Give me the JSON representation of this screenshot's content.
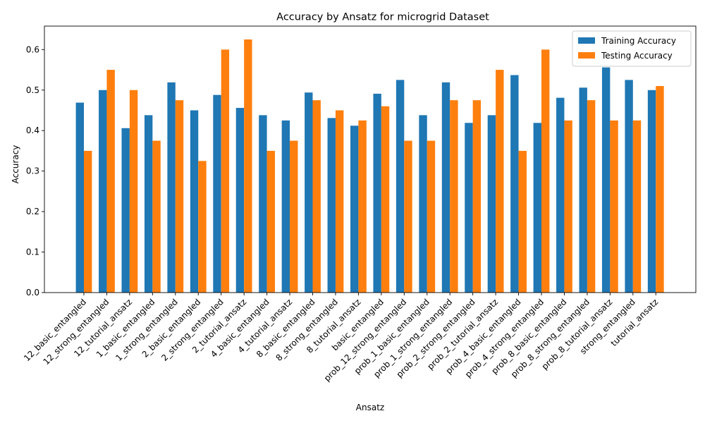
{
  "chart_data": {
    "type": "bar",
    "title": "Accuracy by Ansatz for microgrid Dataset",
    "xlabel": "Ansatz",
    "ylabel": "Accuracy",
    "ylim": [
      0,
      0.658
    ],
    "yticks": [
      0.0,
      0.1,
      0.2,
      0.3,
      0.4,
      0.5,
      0.6
    ],
    "ytick_labels": [
      "0.0",
      "0.1",
      "0.2",
      "0.3",
      "0.4",
      "0.5",
      "0.6"
    ],
    "grid": false,
    "legend_position": "top-right",
    "categories": [
      "12_basic_entangled",
      "12_strong_entangled",
      "12_tutorial_ansatz",
      "1_basic_entangled",
      "1_strong_entangled",
      "2_basic_entangled",
      "2_strong_entangled",
      "2_tutorial_ansatz",
      "4_basic_entangled",
      "4_tutorial_ansatz",
      "8_basic_entangled",
      "8_strong_entangled",
      "8_tutorial_ansatz",
      "basic_entangled",
      "prob_12_strong_entangled",
      "prob_1_basic_entangled",
      "prob_1_strong_entangled",
      "prob_2_strong_entangled",
      "prob_2_tutorial_ansatz",
      "prob_4_basic_entangled",
      "prob_4_strong_entangled",
      "prob_8_basic_entangled",
      "prob_8_strong_entangled",
      "prob_8_tutorial_ansatz",
      "strong_entangled",
      "tutorial_ansatz"
    ],
    "series": [
      {
        "name": "Training Accuracy",
        "color": "#1f77b4",
        "values": [
          0.469,
          0.5,
          0.406,
          0.438,
          0.519,
          0.45,
          0.488,
          0.456,
          0.438,
          0.425,
          0.494,
          0.431,
          0.412,
          0.491,
          0.525,
          0.438,
          0.519,
          0.419,
          0.438,
          0.537,
          0.419,
          0.481,
          0.506,
          0.556,
          0.525,
          0.5
        ]
      },
      {
        "name": "Testing Accuracy",
        "color": "#ff7f0e",
        "values": [
          0.35,
          0.55,
          0.5,
          0.375,
          0.475,
          0.325,
          0.6,
          0.625,
          0.35,
          0.375,
          0.475,
          0.45,
          0.425,
          0.46,
          0.375,
          0.375,
          0.475,
          0.475,
          0.55,
          0.35,
          0.6,
          0.425,
          0.475,
          0.425,
          0.425,
          0.51
        ]
      }
    ]
  }
}
